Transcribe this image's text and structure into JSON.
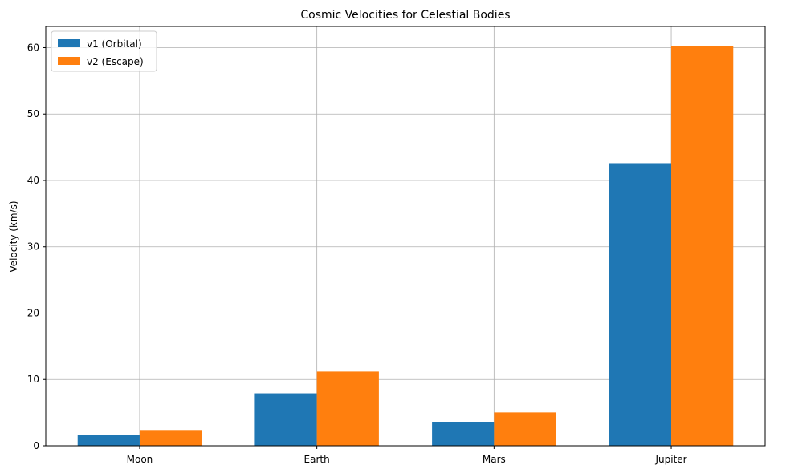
{
  "chart_data": {
    "type": "bar",
    "title": "Cosmic Velocities for Celestial Bodies",
    "xlabel": "",
    "ylabel": "Velocity (km/s)",
    "categories": [
      "Moon",
      "Earth",
      "Mars",
      "Jupiter"
    ],
    "series": [
      {
        "name": "v1 (Orbital)",
        "color": "#1f77b4",
        "values": [
          1.68,
          7.91,
          3.55,
          42.6
        ]
      },
      {
        "name": "v2 (Escape)",
        "color": "#ff7f0e",
        "values": [
          2.38,
          11.19,
          5.03,
          60.2
        ]
      }
    ],
    "ylim": [
      0,
      63.2
    ],
    "yticks": [
      0,
      10,
      20,
      30,
      40,
      50,
      60
    ],
    "grid": true,
    "legend_position": "top-left"
  }
}
